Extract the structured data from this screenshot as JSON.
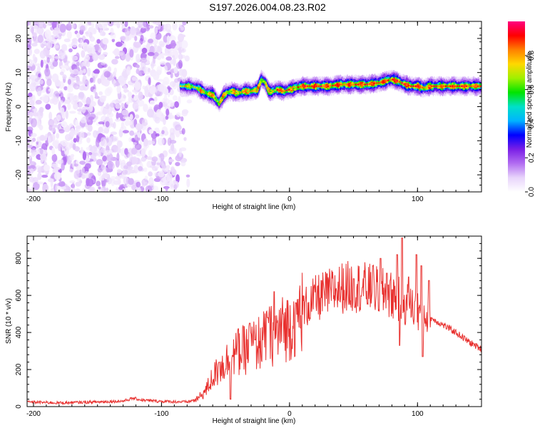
{
  "title": "S197.2026.004.08.23.R02",
  "chart_data": [
    {
      "type": "heatmap",
      "xlabel": "Height of straight line (km)",
      "ylabel": "Frequency (Hz)",
      "xlim": [
        -205,
        150
      ],
      "ylim": [
        -25,
        25
      ],
      "x_ticks": [
        -200,
        -100,
        0,
        100
      ],
      "y_ticks": [
        -20,
        -10,
        0,
        10,
        20
      ],
      "colorbar": {
        "label": "Normalized spectral amplitude",
        "range": [
          0,
          1
        ],
        "ticks": [
          0.0,
          0.2,
          0.4,
          0.6,
          0.8
        ],
        "colormap": [
          "#ffffff",
          "#e8d4fb",
          "#b26df1",
          "#7a1fe6",
          "#0000ff",
          "#00b4ff",
          "#00e0c8",
          "#00e400",
          "#a0f000",
          "#ffd800",
          "#ff8000",
          "#ff0000",
          "#ff0080"
        ]
      },
      "ridge": {
        "x": [
          -85,
          -78,
          -72,
          -66,
          -60,
          -55,
          -50,
          -45,
          -40,
          -35,
          -30,
          -25,
          -22,
          -19,
          -16,
          -13,
          -10,
          -5,
          0,
          5,
          10,
          20,
          30,
          40,
          50,
          60,
          70,
          80,
          85,
          90,
          95,
          100,
          105,
          110,
          120,
          130,
          140,
          150
        ],
        "y": [
          6,
          6,
          5.5,
          4,
          3.5,
          1,
          4,
          4.5,
          4,
          4.5,
          4.5,
          5,
          8,
          7,
          4.5,
          4.5,
          5,
          4.5,
          5,
          5.5,
          6,
          6,
          6,
          6.5,
          6.5,
          6.5,
          7,
          8,
          7.5,
          6.5,
          6,
          6,
          5.5,
          6,
          6,
          6,
          6,
          6
        ]
      },
      "noise_region": {
        "x": [
          -205,
          -78
        ],
        "y": [
          -25,
          25
        ]
      }
    },
    {
      "type": "line",
      "xlabel": "Height of straight line (km)",
      "ylabel": "SNR (10 * v/v)",
      "xlim": [
        -205,
        150
      ],
      "ylim": [
        0,
        920
      ],
      "x_ticks": [
        -200,
        -100,
        0,
        100
      ],
      "y_ticks": [
        0,
        200,
        400,
        600,
        800
      ],
      "color": "#e8302e",
      "envelope": {
        "x": [
          -205,
          -180,
          -150,
          -130,
          -122,
          -115,
          -100,
          -80,
          -72,
          -65,
          -60,
          -55,
          -50,
          -45,
          -40,
          -30,
          -20,
          -10,
          0,
          10,
          20,
          30,
          40,
          50,
          60,
          70,
          80,
          90,
          100,
          110,
          120,
          130,
          140,
          150
        ],
        "y": [
          25,
          20,
          25,
          30,
          45,
          35,
          28,
          25,
          40,
          90,
          160,
          200,
          240,
          270,
          290,
          320,
          360,
          400,
          440,
          520,
          580,
          610,
          640,
          650,
          640,
          620,
          600,
          560,
          520,
          480,
          440,
          400,
          350,
          310
        ]
      },
      "spikes": [
        {
          "x": -55,
          "y": 240
        },
        {
          "x": -40,
          "y": 420
        },
        {
          "x": -31,
          "y": 450
        },
        {
          "x": -27,
          "y": 360
        },
        {
          "x": -17,
          "y": 480
        },
        {
          "x": -12,
          "y": 620
        },
        {
          "x": -5,
          "y": 500
        },
        {
          "x": 5,
          "y": 560
        },
        {
          "x": 50,
          "y": 690
        },
        {
          "x": 65,
          "y": 760
        },
        {
          "x": 71,
          "y": 800
        },
        {
          "x": 76,
          "y": 720
        },
        {
          "x": 84,
          "y": 820
        },
        {
          "x": 88,
          "y": 910
        },
        {
          "x": 93,
          "y": 700
        },
        {
          "x": 99,
          "y": 820
        },
        {
          "x": 103,
          "y": 760
        },
        {
          "x": 109,
          "y": 680
        }
      ],
      "dips": [
        {
          "x": 86,
          "y": 330
        },
        {
          "x": 104,
          "y": 270
        },
        {
          "x": -46,
          "y": 40
        }
      ]
    }
  ]
}
